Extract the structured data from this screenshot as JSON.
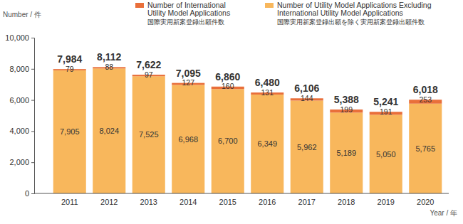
{
  "chart_data": {
    "type": "bar",
    "stacked": true,
    "data_labels": true,
    "grid": false,
    "legend": "top",
    "y_label": "Number / 件",
    "x_label": "Year / 年",
    "categories": [
      "2011",
      "2012",
      "2013",
      "2014",
      "2015",
      "2016",
      "2017",
      "2018",
      "2019",
      "2020"
    ],
    "series": [
      {
        "name": "Number of Utility Model Applications Excluding\nInternational Utility Model  Applications\n国際実用新案登録出願を除く実用新案登録出願件数",
        "color": "#f8b75c",
        "values": [
          7905,
          8024,
          7525,
          6968,
          6700,
          6349,
          5962,
          5189,
          5050,
          5765
        ],
        "value_labels": [
          "7,905",
          "8,024",
          "7,525",
          "6,968",
          "6,700",
          "6,349",
          "5,962",
          "5,189",
          "5,050",
          "5,765"
        ]
      },
      {
        "name": "Number of International\nUtility Model Applications\n国際実用新案登録出願件数",
        "color": "#e96f3a",
        "values": [
          79,
          88,
          97,
          127,
          160,
          131,
          144,
          199,
          191,
          253
        ]
      }
    ],
    "totals": [
      7984,
      8112,
      7622,
      7095,
      6860,
      6480,
      6106,
      5388,
      5241,
      6018
    ],
    "total_labels": [
      "7,984",
      "8,112",
      "7,622",
      "7,095",
      "6,860",
      "6,480",
      "6,106",
      "5,388",
      "5,241",
      "6,018"
    ],
    "ylim": [
      0,
      10000
    ],
    "yticks": [
      0,
      {
        "value": 2000,
        "label": "2,000"
      },
      {
        "value": 4000,
        "label": "4,000"
      },
      {
        "value": 6000,
        "label": "6,000"
      },
      {
        "value": 8000,
        "label": "8,000"
      },
      {
        "value": 10000,
        "label": "10,000"
      }
    ]
  }
}
